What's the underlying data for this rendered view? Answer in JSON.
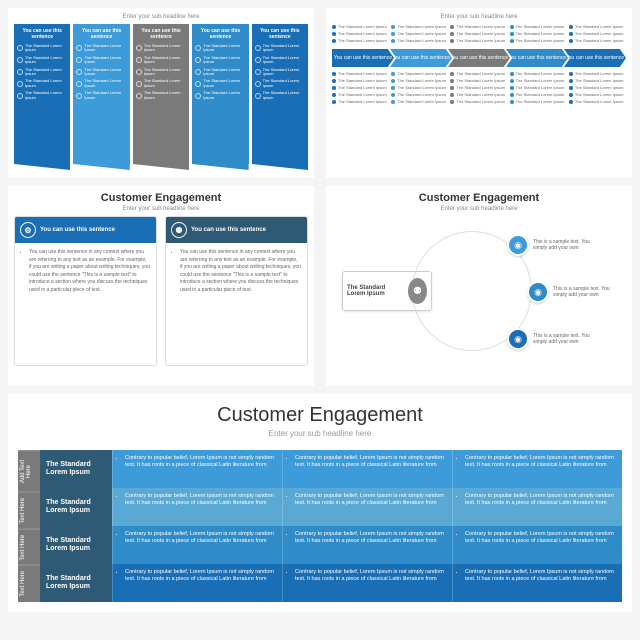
{
  "subtitle_generic": "Enter your sub headline here",
  "col_hdr": "You can use this sentence",
  "col_item": "The Standard Lorem Ipsum",
  "panel1_colors": [
    "#1a6eb5",
    "#3d9bd9",
    "#7a7a7a",
    "#2f8cc9",
    "#1a6eb5"
  ],
  "panel2_top_dots": [
    "#1a6eb5",
    "#3d9bd9",
    "#7a7a7a",
    "#2f8cc9",
    "#1a6eb5"
  ],
  "panel2_arrows": [
    "#1a6eb5",
    "#3d9bd9",
    "#7a7a7a",
    "#2f8cc9",
    "#1a6eb5"
  ],
  "panel2_bottom_dots": [
    "#1a6eb5",
    "#3d9bd9",
    "#7a7a7a",
    "#2f8cc9",
    "#1a6eb5"
  ],
  "arrow_label": "You can use this sentence",
  "list_item_text": "The Standard Lorem Ipsum",
  "mid_title": "Customer Engagement",
  "card_hdr": "You can use this sentence",
  "card_colors": [
    "#1a6eb5",
    "#2f5a75"
  ],
  "card_body": "You can use this sentence in any context where you are referring to any text as an example. For example, if you are writing a paper about writing techniques, you could use the sentence \"This is a sample text\" to introduce a section where you discuss the techniques used in a particular piece of text.",
  "radial_center": "The Standard Lorem Ipsum",
  "radial_nodes": [
    {
      "color": "#3d9bd9",
      "text": "This is a sample text. You simply add your own"
    },
    {
      "color": "#2f8cc9",
      "text": "This is a sample text. You simply add your own"
    },
    {
      "color": "#1a6eb5",
      "text": "This is a sample text. You simply add your own"
    }
  ],
  "big_title": "Customer Engagement",
  "side_top": "Add Text Here",
  "side_cell": "Text Here",
  "table_left_bg": "#2f5a75",
  "table_label": "The Standard Lorem Ipsum",
  "table_row_colors": [
    "#3d9bd9",
    "#5aa8d4",
    "#2f8cc9",
    "#1a6eb5"
  ],
  "table_cell": "Contrary to popular belief, Lorem Ipsum is not simply random text. It has roots in a piece of classical Latin literature from"
}
